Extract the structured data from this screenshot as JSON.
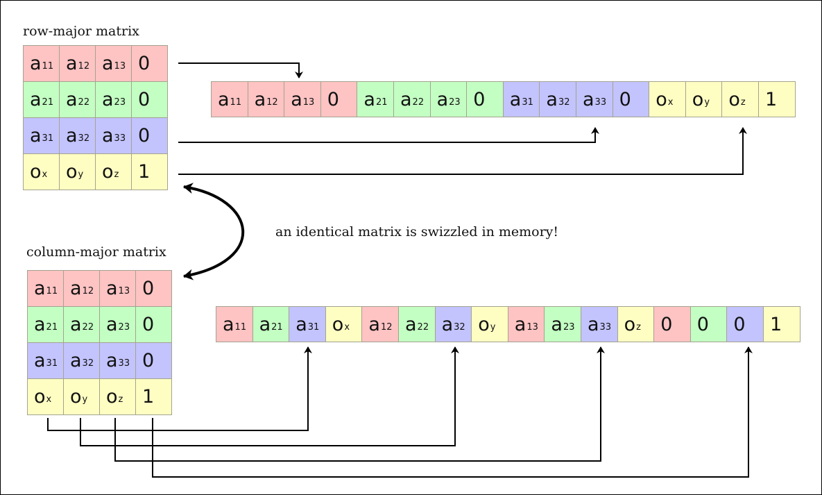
{
  "titles": {
    "row_major": "row-major matrix",
    "column_major": "column-major matrix",
    "note": "an identical matrix is swizzled in memory!"
  },
  "colors": {
    "red": "#fec3c3",
    "green": "#c3fec3",
    "blue": "#c3c3fe",
    "yellow": "#fefec3",
    "border": "#a3a38f"
  },
  "row_major_matrix": [
    [
      {
        "b": "a",
        "s": "11",
        "c": "red"
      },
      {
        "b": "a",
        "s": "12",
        "c": "red"
      },
      {
        "b": "a",
        "s": "13",
        "c": "red"
      },
      {
        "b": "0",
        "s": "",
        "c": "red"
      }
    ],
    [
      {
        "b": "a",
        "s": "21",
        "c": "green"
      },
      {
        "b": "a",
        "s": "22",
        "c": "green"
      },
      {
        "b": "a",
        "s": "23",
        "c": "green"
      },
      {
        "b": "0",
        "s": "",
        "c": "green"
      }
    ],
    [
      {
        "b": "a",
        "s": "31",
        "c": "blue"
      },
      {
        "b": "a",
        "s": "32",
        "c": "blue"
      },
      {
        "b": "a",
        "s": "33",
        "c": "blue"
      },
      {
        "b": "0",
        "s": "",
        "c": "blue"
      }
    ],
    [
      {
        "b": "o",
        "s": "x",
        "c": "yellow"
      },
      {
        "b": "o",
        "s": "y",
        "c": "yellow"
      },
      {
        "b": "o",
        "s": "z",
        "c": "yellow"
      },
      {
        "b": "1",
        "s": "",
        "c": "yellow"
      }
    ]
  ],
  "column_major_matrix": [
    [
      {
        "b": "a",
        "s": "11",
        "c": "red"
      },
      {
        "b": "a",
        "s": "12",
        "c": "red"
      },
      {
        "b": "a",
        "s": "13",
        "c": "red"
      },
      {
        "b": "0",
        "s": "",
        "c": "red"
      }
    ],
    [
      {
        "b": "a",
        "s": "21",
        "c": "green"
      },
      {
        "b": "a",
        "s": "22",
        "c": "green"
      },
      {
        "b": "a",
        "s": "23",
        "c": "green"
      },
      {
        "b": "0",
        "s": "",
        "c": "green"
      }
    ],
    [
      {
        "b": "a",
        "s": "31",
        "c": "blue"
      },
      {
        "b": "a",
        "s": "32",
        "c": "blue"
      },
      {
        "b": "a",
        "s": "33",
        "c": "blue"
      },
      {
        "b": "0",
        "s": "",
        "c": "blue"
      }
    ],
    [
      {
        "b": "o",
        "s": "x",
        "c": "yellow"
      },
      {
        "b": "o",
        "s": "y",
        "c": "yellow"
      },
      {
        "b": "o",
        "s": "z",
        "c": "yellow"
      },
      {
        "b": "1",
        "s": "",
        "c": "yellow"
      }
    ]
  ],
  "row_major_memory": [
    {
      "b": "a",
      "s": "11",
      "c": "red"
    },
    {
      "b": "a",
      "s": "12",
      "c": "red"
    },
    {
      "b": "a",
      "s": "13",
      "c": "red"
    },
    {
      "b": "0",
      "s": "",
      "c": "red"
    },
    {
      "b": "a",
      "s": "21",
      "c": "green"
    },
    {
      "b": "a",
      "s": "22",
      "c": "green"
    },
    {
      "b": "a",
      "s": "23",
      "c": "green"
    },
    {
      "b": "0",
      "s": "",
      "c": "green"
    },
    {
      "b": "a",
      "s": "31",
      "c": "blue"
    },
    {
      "b": "a",
      "s": "32",
      "c": "blue"
    },
    {
      "b": "a",
      "s": "33",
      "c": "blue"
    },
    {
      "b": "0",
      "s": "",
      "c": "blue"
    },
    {
      "b": "o",
      "s": "x",
      "c": "yellow"
    },
    {
      "b": "o",
      "s": "y",
      "c": "yellow"
    },
    {
      "b": "o",
      "s": "z",
      "c": "yellow"
    },
    {
      "b": "1",
      "s": "",
      "c": "yellow"
    }
  ],
  "column_major_memory": [
    {
      "b": "a",
      "s": "11",
      "c": "red"
    },
    {
      "b": "a",
      "s": "21",
      "c": "green"
    },
    {
      "b": "a",
      "s": "31",
      "c": "blue"
    },
    {
      "b": "o",
      "s": "x",
      "c": "yellow"
    },
    {
      "b": "a",
      "s": "12",
      "c": "red"
    },
    {
      "b": "a",
      "s": "22",
      "c": "green"
    },
    {
      "b": "a",
      "s": "32",
      "c": "blue"
    },
    {
      "b": "o",
      "s": "y",
      "c": "yellow"
    },
    {
      "b": "a",
      "s": "13",
      "c": "red"
    },
    {
      "b": "a",
      "s": "23",
      "c": "green"
    },
    {
      "b": "a",
      "s": "33",
      "c": "blue"
    },
    {
      "b": "o",
      "s": "z",
      "c": "yellow"
    },
    {
      "b": "0",
      "s": "",
      "c": "red"
    },
    {
      "b": "0",
      "s": "",
      "c": "green"
    },
    {
      "b": "0",
      "s": "",
      "c": "blue"
    },
    {
      "b": "1",
      "s": "",
      "c": "yellow"
    }
  ]
}
